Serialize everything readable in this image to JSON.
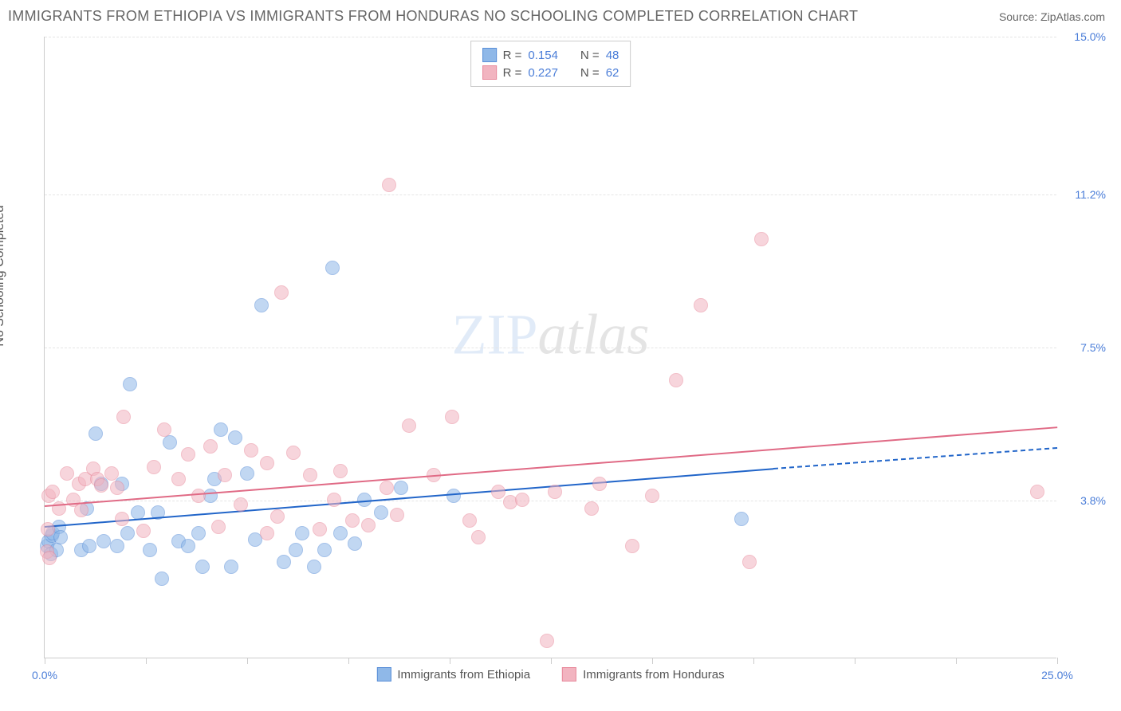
{
  "title": "IMMIGRANTS FROM ETHIOPIA VS IMMIGRANTS FROM HONDURAS NO SCHOOLING COMPLETED CORRELATION CHART",
  "source": "Source: ZipAtlas.com",
  "ylabel": "No Schooling Completed",
  "watermark_zip": "ZIP",
  "watermark_atlas": "atlas",
  "chart": {
    "type": "scatter",
    "xlim": [
      0,
      25
    ],
    "ylim": [
      0,
      15
    ],
    "background_color": "#ffffff",
    "grid_color": "#e5e5e5",
    "axis_color": "#cccccc",
    "tick_label_color": "#4a7dd8",
    "point_radius": 9,
    "point_opacity": 0.55,
    "y_ticks": [
      {
        "value": 3.8,
        "label": "3.8%"
      },
      {
        "value": 7.5,
        "label": "7.5%"
      },
      {
        "value": 11.2,
        "label": "11.2%"
      },
      {
        "value": 15.0,
        "label": "15.0%"
      }
    ],
    "x_ticks_minor": [
      0,
      2.5,
      5,
      7.5,
      10,
      12.5,
      15,
      17.5,
      20,
      22.5,
      25
    ],
    "x_labels": [
      {
        "value": 0,
        "label": "0.0%"
      },
      {
        "value": 25,
        "label": "25.0%"
      }
    ]
  },
  "series": [
    {
      "name": "Immigrants from Ethiopia",
      "label": "Immigrants from Ethiopia",
      "fill_color": "#8fb8e8",
      "stroke_color": "#5a8fd8",
      "line_color": "#2165c9",
      "R": "0.154",
      "N": "48",
      "trend": {
        "x1": 0,
        "y1": 3.2,
        "x2": 18.0,
        "y2": 4.6,
        "dash_x2": 25.0,
        "dash_y2": 5.1
      },
      "points": [
        [
          0.05,
          2.7
        ],
        [
          0.1,
          2.8
        ],
        [
          0.15,
          2.5
        ],
        [
          0.18,
          2.95
        ],
        [
          0.2,
          3.0
        ],
        [
          0.3,
          2.6
        ],
        [
          0.35,
          3.15
        ],
        [
          0.4,
          2.9
        ],
        [
          0.9,
          2.6
        ],
        [
          1.05,
          3.6
        ],
        [
          1.1,
          2.7
        ],
        [
          1.25,
          5.4
        ],
        [
          1.4,
          4.2
        ],
        [
          1.45,
          2.8
        ],
        [
          1.8,
          2.7
        ],
        [
          1.9,
          4.2
        ],
        [
          2.05,
          3.0
        ],
        [
          2.1,
          6.6
        ],
        [
          2.3,
          3.5
        ],
        [
          2.6,
          2.6
        ],
        [
          2.8,
          3.5
        ],
        [
          2.9,
          1.9
        ],
        [
          3.1,
          5.2
        ],
        [
          3.3,
          2.8
        ],
        [
          3.55,
          2.7
        ],
        [
          3.8,
          3.0
        ],
        [
          3.9,
          2.2
        ],
        [
          4.1,
          3.9
        ],
        [
          4.2,
          4.3
        ],
        [
          4.35,
          5.5
        ],
        [
          4.6,
          2.2
        ],
        [
          4.7,
          5.3
        ],
        [
          5.0,
          4.45
        ],
        [
          5.2,
          2.85
        ],
        [
          5.35,
          8.5
        ],
        [
          5.9,
          2.3
        ],
        [
          6.2,
          2.6
        ],
        [
          6.35,
          3.0
        ],
        [
          6.65,
          2.2
        ],
        [
          6.9,
          2.6
        ],
        [
          7.1,
          9.4
        ],
        [
          7.3,
          3.0
        ],
        [
          7.65,
          2.75
        ],
        [
          7.9,
          3.8
        ],
        [
          8.3,
          3.5
        ],
        [
          8.8,
          4.1
        ],
        [
          10.1,
          3.9
        ],
        [
          17.2,
          3.35
        ]
      ]
    },
    {
      "name": "Immigrants from Honduras",
      "label": "Immigrants from Honduras",
      "fill_color": "#f2b4c0",
      "stroke_color": "#e88a9c",
      "line_color": "#e06a85",
      "R": "0.227",
      "N": "62",
      "trend": {
        "x1": 0,
        "y1": 3.7,
        "x2": 25.0,
        "y2": 5.6
      },
      "points": [
        [
          0.05,
          2.55
        ],
        [
          0.08,
          3.1
        ],
        [
          0.1,
          3.9
        ],
        [
          0.12,
          2.4
        ],
        [
          0.2,
          4.0
        ],
        [
          0.35,
          3.6
        ],
        [
          0.55,
          4.45
        ],
        [
          0.7,
          3.8
        ],
        [
          0.85,
          4.2
        ],
        [
          0.9,
          3.55
        ],
        [
          1.0,
          4.3
        ],
        [
          1.2,
          4.55
        ],
        [
          1.3,
          4.3
        ],
        [
          1.4,
          4.15
        ],
        [
          1.65,
          4.45
        ],
        [
          1.8,
          4.1
        ],
        [
          1.9,
          3.35
        ],
        [
          1.95,
          5.8
        ],
        [
          2.45,
          3.05
        ],
        [
          2.7,
          4.6
        ],
        [
          2.95,
          5.5
        ],
        [
          3.3,
          4.3
        ],
        [
          3.55,
          4.9
        ],
        [
          3.8,
          3.9
        ],
        [
          4.1,
          5.1
        ],
        [
          4.3,
          3.15
        ],
        [
          4.45,
          4.4
        ],
        [
          4.85,
          3.7
        ],
        [
          5.1,
          5.0
        ],
        [
          5.5,
          3.0
        ],
        [
          5.5,
          4.7
        ],
        [
          5.75,
          3.4
        ],
        [
          5.85,
          8.8
        ],
        [
          6.15,
          4.95
        ],
        [
          6.55,
          4.4
        ],
        [
          6.8,
          3.1
        ],
        [
          7.15,
          3.8
        ],
        [
          7.3,
          4.5
        ],
        [
          7.6,
          3.3
        ],
        [
          8.0,
          3.2
        ],
        [
          8.45,
          4.1
        ],
        [
          8.5,
          11.4
        ],
        [
          8.7,
          3.45
        ],
        [
          9.0,
          5.6
        ],
        [
          9.6,
          4.4
        ],
        [
          10.05,
          5.8
        ],
        [
          10.5,
          3.3
        ],
        [
          10.7,
          2.9
        ],
        [
          11.2,
          4.0
        ],
        [
          11.5,
          3.75
        ],
        [
          11.8,
          3.8
        ],
        [
          12.4,
          0.4
        ],
        [
          12.6,
          4.0
        ],
        [
          13.5,
          3.6
        ],
        [
          13.7,
          4.2
        ],
        [
          14.5,
          2.7
        ],
        [
          15.0,
          3.9
        ],
        [
          15.6,
          6.7
        ],
        [
          16.2,
          8.5
        ],
        [
          17.4,
          2.3
        ],
        [
          17.7,
          10.1
        ],
        [
          24.5,
          4.0
        ]
      ]
    }
  ],
  "legend_box": {
    "R_label": "R =",
    "N_label": "N ="
  }
}
